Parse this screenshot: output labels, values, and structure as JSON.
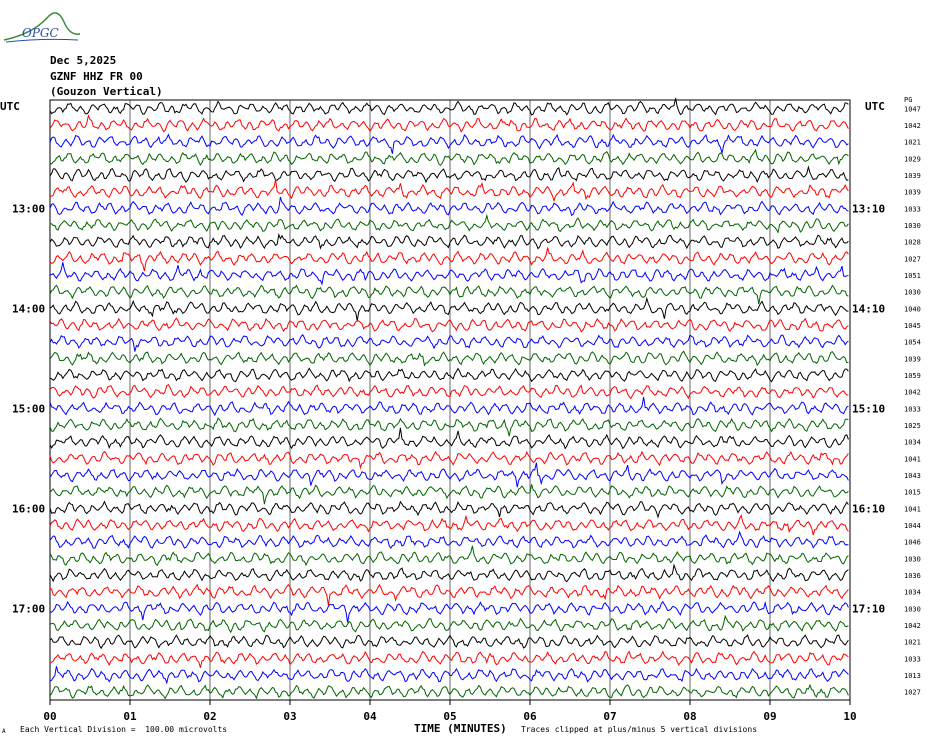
{
  "logo": {
    "text": "OPGC",
    "icon": "logo-curve-icon",
    "color": "#2a4fa0",
    "curve_color": "#3a8a3a"
  },
  "header": {
    "date": "Dec 5,2025",
    "station": "GZNF HHZ FR 00",
    "location": "(Gouzon Vertical)"
  },
  "left_axis_label": "UTC",
  "right_axis_label": "UTC",
  "right_column_header": "PG",
  "chart_data": {
    "type": "line",
    "title": "",
    "xlabel": "TIME (MINUTES)",
    "ylabel": "",
    "xlim": [
      0,
      10
    ],
    "x_ticks": [
      "00",
      "01",
      "02",
      "03",
      "04",
      "05",
      "06",
      "07",
      "08",
      "09",
      "10"
    ],
    "grid": true,
    "trace_colors": [
      "#000000",
      "#ff0000",
      "#0000ff",
      "#006400"
    ],
    "left_time_labels": [
      {
        "row": 6,
        "label": "13:00"
      },
      {
        "row": 12,
        "label": "14:00"
      },
      {
        "row": 18,
        "label": "15:00"
      },
      {
        "row": 24,
        "label": "16:00"
      },
      {
        "row": 30,
        "label": "17:00"
      }
    ],
    "right_time_labels": [
      {
        "row": 6,
        "label": "13:10"
      },
      {
        "row": 12,
        "label": "14:10"
      },
      {
        "row": 18,
        "label": "15:10"
      },
      {
        "row": 24,
        "label": "16:10"
      },
      {
        "row": 30,
        "label": "17:10"
      }
    ],
    "trace_values": [
      "1047",
      "1042",
      "1021",
      "1029",
      "1039",
      "1039",
      "1033",
      "1030",
      "1028",
      "1027",
      "1051",
      "1030",
      "1040",
      "1045",
      "1054",
      "1039",
      "1059",
      "1042",
      "1033",
      "1025",
      "1034",
      "1041",
      "1043",
      "1015",
      "1041",
      "1044",
      "1046",
      "1030",
      "1036",
      "1034",
      "1030",
      "1042",
      "1021",
      "1033",
      "1013",
      "1027"
    ]
  },
  "footer": {
    "division_note": "Each Vertical Division =  100.00 microvolts",
    "clip_note": "Traces clipped at plus/minus 5 vertical divisions",
    "corner_mark": "A"
  }
}
